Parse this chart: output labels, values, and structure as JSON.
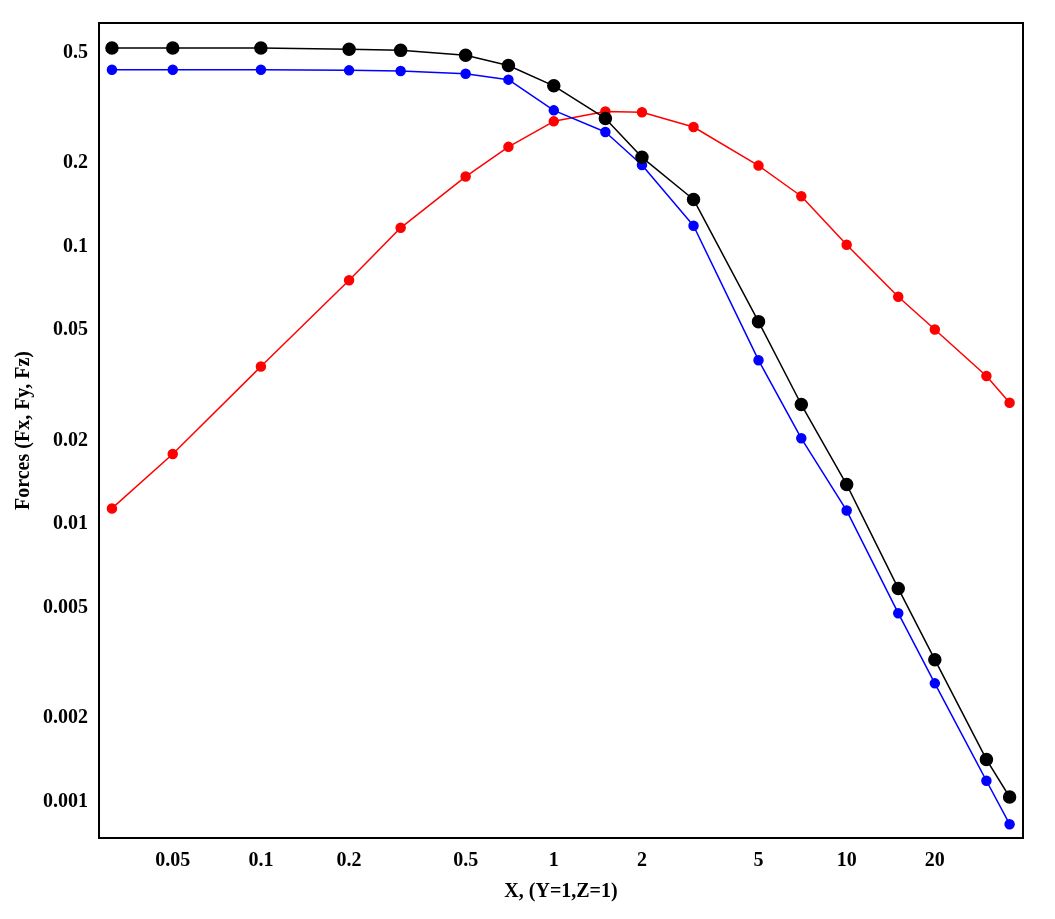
{
  "chart_data": {
    "type": "line",
    "xlabel": "X, (Y=1,Z=1)",
    "ylabel": "Forces (Fx, Fy, Fz)",
    "log": "xy",
    "grid": false,
    "legend": false,
    "marker": "circle",
    "line_style": "solid",
    "x": [
      0.031,
      0.05,
      0.1,
      0.2,
      0.3,
      0.5,
      0.7,
      1,
      1.5,
      2,
      3,
      5,
      7,
      10,
      15,
      20,
      30,
      36
    ],
    "series": [
      {
        "color": "#000000",
        "values": [
          0.52,
          0.52,
          0.52,
          0.515,
          0.51,
          0.49,
          0.45,
          0.38,
          0.29,
          0.21,
          0.148,
          0.0537,
          0.027,
          0.0139,
          0.00587,
          0.00325,
          0.00142,
          0.00104
        ]
      },
      {
        "color": "#0000ff",
        "values": [
          0.434,
          0.434,
          0.434,
          0.432,
          0.43,
          0.42,
          0.4,
          0.31,
          0.259,
          0.197,
          0.119,
          0.039,
          0.0204,
          0.0112,
          0.00478,
          0.00267,
          0.00119,
          0.00083
        ]
      },
      {
        "color": "#ff0000",
        "values": [
          0.0114,
          0.0179,
          0.037,
          0.0757,
          0.117,
          0.179,
          0.229,
          0.283,
          0.307,
          0.305,
          0.27,
          0.196,
          0.152,
          0.1016,
          0.066,
          0.0503,
          0.0342,
          0.0274
        ]
      }
    ],
    "xlim": [
      0.028,
      40
    ],
    "xticks": [
      0.05,
      0.1,
      0.2,
      0.5,
      1,
      2,
      5,
      10,
      20
    ],
    "ylim": [
      0.00074,
      0.64
    ],
    "yticks": [
      0.001,
      0.002,
      0.005,
      0.01,
      0.02,
      0.05,
      0.1,
      0.2,
      0.5
    ]
  }
}
